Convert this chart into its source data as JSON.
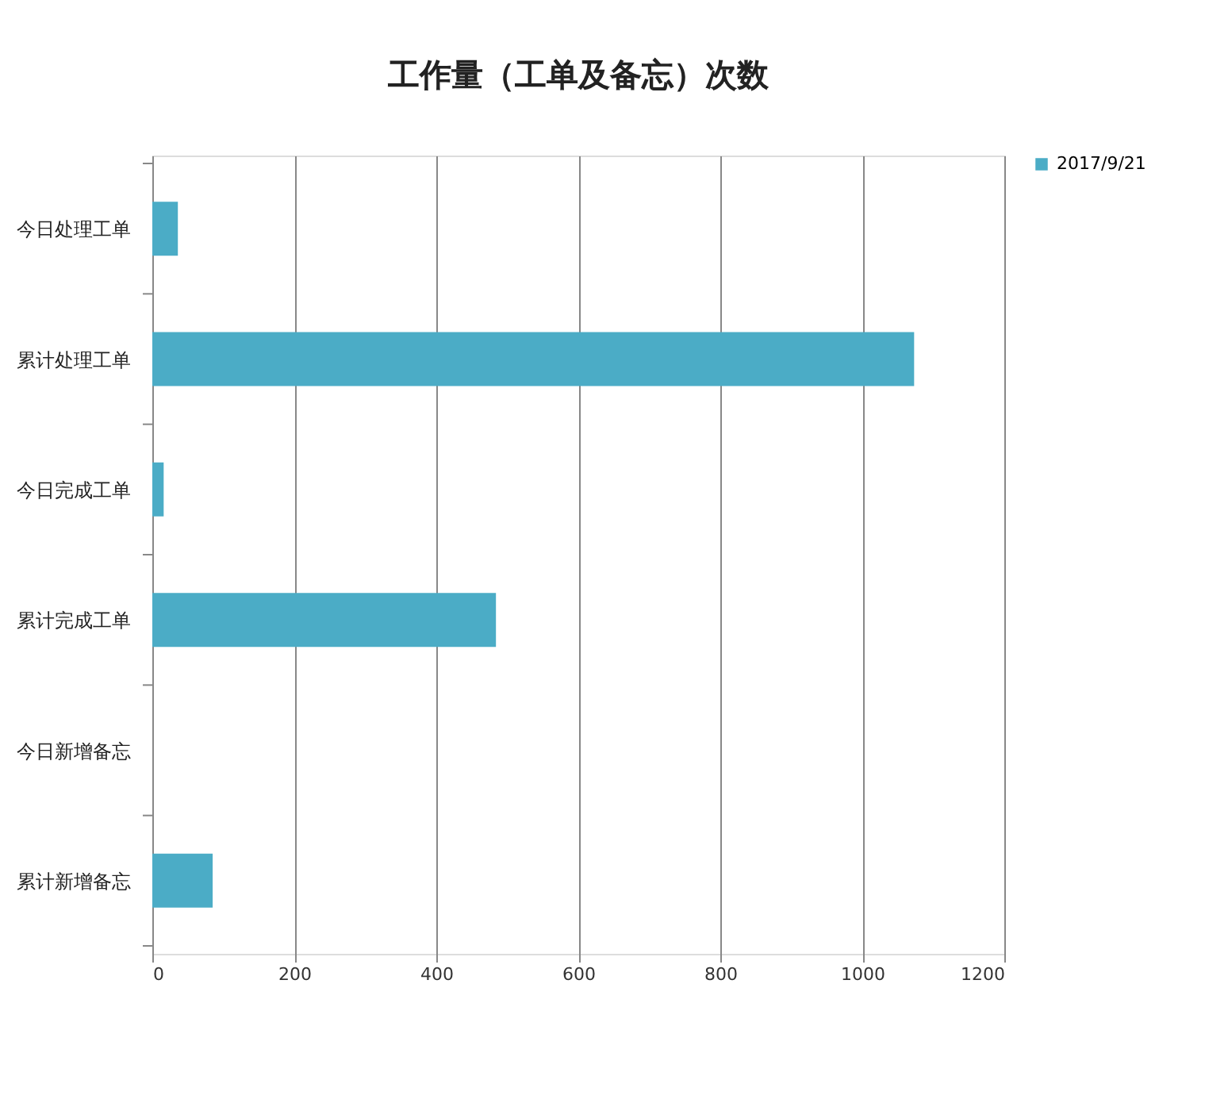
{
  "chart_data": {
    "type": "bar",
    "orientation": "horizontal",
    "title": "工作量（工单及备忘）次数",
    "categories": [
      "今日处理工单",
      "累计处理工单",
      "今日完成工单",
      "累计完成工单",
      "今日新增备忘",
      "累计新增备忘"
    ],
    "series": [
      {
        "name": "2017/9/21",
        "color": "#4bacc6",
        "values": [
          36,
          1073,
          16,
          484,
          0,
          85
        ]
      }
    ],
    "xlim": [
      0,
      1200
    ],
    "xticks": [
      0,
      200,
      400,
      600,
      800,
      1000,
      1200
    ],
    "grid": "x",
    "legend": "right"
  }
}
